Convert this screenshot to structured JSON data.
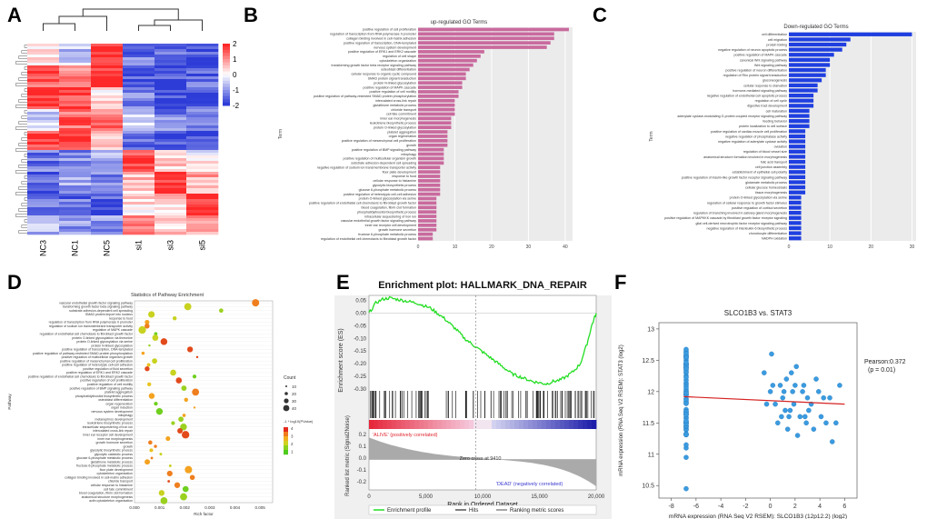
{
  "figure": {
    "panel_labels": [
      "A",
      "B",
      "C",
      "D",
      "E",
      "F"
    ]
  },
  "heatmap": {
    "columns": [
      "NC3",
      "NC1",
      "NC5",
      "si1",
      "si3",
      "si5"
    ],
    "legend_ticks": [
      "2",
      "1",
      "0",
      "-1",
      "-2"
    ],
    "colors": {
      "high": "#e41a1c",
      "mid": "#ffffff",
      "low": "#2b3bd6"
    }
  },
  "chart_data": [
    {
      "id": "B",
      "type": "bar",
      "title": "up-regulated GO Terms",
      "ylabel": "Term",
      "xlabel": "",
      "color": "#c96a9e",
      "xlim": [
        0,
        42
      ],
      "xticks": [
        0,
        10,
        20,
        30,
        40
      ],
      "categories": [
        "positive regulation of cell proliferation",
        "regulation of transcription from RNA polymerase II promoter",
        "collagen binding involved in cell-matrix adhesion",
        "positive regulation of transcription, DNA-templated",
        "nervous system development",
        "positive regulation of ERK1 and ERK2 cascade",
        "regulation of cell shape",
        "cytoskeleton organization",
        "transforming growth factor beta receptor signaling pathway",
        "osteoblast differentiation",
        "cellular response to organic cyclic compound",
        "SMAD protein signal transduction",
        "protein N-linked glycosylation",
        "positive regulation of MAPK cascade",
        "positive regulation of cell motility",
        "positive regulation of pathway-restricted SMAD protein phosphorylation",
        "intercalated cross-link repair",
        "glutathione metabolic process",
        "chloride transport",
        "cell fate commitment",
        "inner ear morphogenesis",
        "leukotriene biosynthetic process",
        "protein O-linked glycosylation",
        "platelet aggregation",
        "organ regeneration",
        "positive regulation of mesenchymal cell proliferation",
        "growth",
        "positive regulation of BMP signaling pathway",
        "mitophagy",
        "positive regulation of multicellular organism growth",
        "substrate adhesion-dependent cell spreading",
        "negative regulation of sodium ion transmembrane transporter activity",
        "floor plate development",
        "response to food",
        "cellular response to histamine",
        "glycolytic biosynthetic process",
        "glucose 6-phosphate metabolic process",
        "positive regulation of heterotypic cell-cell adhesion",
        "protein O-linked glycosylation via serine",
        "positive regulation of endothelial cell chemotaxis to fibroblast growth factor",
        "blood coagulation, fibrin clot formation",
        "phosphatidylinositol biosynthetic process",
        "intracellular sequestering of iron ion",
        "vascular endothelial growth factor signaling pathway",
        "inner ear receptor cell development",
        "growth hormone secretion",
        "fructose 6-phosphate metabolic process",
        "regulation of endothelial cell chemotaxis to fibroblast growth factor"
      ],
      "values": [
        41,
        37,
        37,
        36,
        35,
        18,
        17,
        16,
        15,
        14,
        13,
        13,
        12,
        12,
        11,
        11,
        10,
        10,
        10,
        10,
        9,
        9,
        9,
        8,
        8,
        8,
        8,
        7,
        7,
        7,
        7,
        6,
        6,
        6,
        6,
        6,
        6,
        6,
        5,
        5,
        5,
        5,
        5,
        5,
        5,
        5,
        4,
        4
      ]
    },
    {
      "id": "C",
      "type": "bar",
      "title": "Down-regulated GO Terms",
      "ylabel": "Term",
      "xlabel": "",
      "color": "#1f3fe0",
      "xlim": [
        0,
        31
      ],
      "xticks": [
        0,
        10,
        20,
        30
      ],
      "categories": [
        "cell differentiation",
        "cell migration",
        "protein folding",
        "negative regulation of neuron apoptotic process",
        "positive regulation of MAPK cascade",
        "canonical Wnt signaling pathway",
        "Wnt signaling pathway",
        "positive regulation of neuron differentiation",
        "regulation of Rho protein signal transduction",
        "gluconeogenesis",
        "cellular response to starvation",
        "hormone-mediated signaling pathway",
        "negative regulation of endothelial cell apoptotic process",
        "regulation of cell cycle",
        "digestive tract development",
        "cell maturation",
        "adenylate cyclase-modulating G-protein coupled receptor signaling pathway",
        "feeding behavior",
        "protein localization to cell surface",
        "positive regulation of cardiac muscle cell proliferation",
        "negative regulation of phosphatase activity",
        "negative regulation of adenylate cyclase activity",
        "ovulation",
        "regulation of blood vessel size",
        "anatomical structure formation involved in morphogenesis",
        "folic acid transport",
        "cell junction assembly",
        "establishment of epithelial cell polarity",
        "positive regulation of insulin-like growth factor receptor signaling pathway",
        "glutamate metabolic process",
        "cellular glucose homeostasis",
        "tissue morphogenesis",
        "protein O-linked glycosylation via serine",
        "regulation of cellular response to growth factor stimulus",
        "positive regulation of cortisol secretion",
        "regulation of branching involved in salivary gland morphogenesis",
        "positive regulation of MAPKKK cascade by fibroblast growth factor receptor signaling",
        "glial cell-derived neurotrophic factor receptor signaling pathway",
        "negative regulation of interleukin-6 biosynthetic process",
        "chondrocyte differentiation",
        "NADPH oxidation"
      ],
      "values": [
        30,
        15,
        14,
        13,
        11,
        10,
        10,
        9,
        9,
        8,
        7,
        7,
        6,
        6,
        6,
        5,
        5,
        5,
        5,
        4,
        4,
        4,
        4,
        4,
        4,
        4,
        4,
        4,
        4,
        4,
        4,
        4,
        3,
        3,
        3,
        3,
        3,
        3,
        3,
        3,
        3
      ]
    },
    {
      "id": "D",
      "type": "scatter",
      "title": "Statistics of Pathway Enrichment",
      "ylabel": "Pathway",
      "xlabel": "Rich factor",
      "xlim": [
        0,
        0.0055
      ],
      "xticks": [
        "0.000",
        "0.001",
        "0.002",
        "0.003",
        "0.004",
        "0.005"
      ],
      "legend_count_title": "Count",
      "legend_count": [
        "10",
        "20",
        "30",
        "40"
      ],
      "legend_color_title": "-1 * log10(PValue)",
      "legend_color_ticks": [
        "4",
        "3",
        "2",
        "1"
      ],
      "categories": [
        "vascular endothelial growth factor signaling pathway",
        "transforming growth factor beta signaling pathway",
        "substrate adhesion-dependent cell spreading",
        "SMAD protein import into nucleus",
        "response to food",
        "regulation of transcription from RNA polymerase II promoter",
        "regulation of sodium ion transmembrane transporter activity",
        "regulation of MAPK cascade",
        "regulation of endothelial cell chemotaxis to fibroblast growth factor",
        "protein O-linked glycosylation via threonine",
        "protein O-linked glycosylation via serine",
        "protein N-linked glycosylation",
        "positive regulation of transcription, DNA-templated",
        "positive regulation of pathway-restricted SMAD protein phosphorylation",
        "positive regulation of multicellular organism growth",
        "positive regulation of mesenchymal cell proliferation",
        "positive regulation of heterotypic cell-cell adhesion",
        "positive regulation of fluid secretion",
        "positive regulation of ERK1 and ERK2 cascade",
        "positive regulation of endothelial cell chemotaxis to fibroblast growth factor",
        "positive regulation of cell proliferation",
        "positive regulation of cell motility",
        "positive regulation of BMP signaling pathway",
        "platelet aggregation",
        "phosphatidylinositol biosynthetic process",
        "osteoblast differentiation",
        "organ regeneration",
        "organ induction",
        "nervous system development",
        "mitophagy",
        "metanephros development",
        "leukotriene biosynthetic process",
        "intracellular sequestering of iron ion",
        "intercalated cross-link repair",
        "inner ear receptor cell development",
        "inner ear morphogenesis",
        "growth hormone secretion",
        "growth",
        "glycolytic biosynthetic process",
        "glycolytic catabolic process",
        "glucose 6-phosphate metabolic process",
        "glutathione metabolic process",
        "fructose 6-phosphate metabolic process",
        "floor plate development",
        "cytoskeleton organization",
        "collagen binding involved in cell-matrix adhesion",
        "chloride transport",
        "cellular response to histamine",
        "cell fate commitment",
        "blood coagulation, fibrin clot formation",
        "anatomical structure morphogenesis",
        "actin cytoskeleton organization"
      ]
    },
    {
      "id": "E",
      "type": "line",
      "title": "Enrichment plot: HALLMARK_DNA_REPAIR",
      "ylabel": "Enrichment score (ES)",
      "ylabel2": "Ranked list metric (Signal2Noise)",
      "xlabel": "Rank in Ordered Dataset",
      "ylim": [
        -0.3,
        0.07
      ],
      "yticks": [
        "0.05",
        "0.00",
        "-0.05",
        "-0.10",
        "-0.15",
        "-0.20",
        "-0.25",
        "-0.30"
      ],
      "y2ticks": [
        "0.2",
        "0.1",
        "0.0",
        "-0.1",
        "-0.2"
      ],
      "xticks": [
        "0",
        "5,000",
        "10,000",
        "15,000",
        "20,000"
      ],
      "x": [
        0,
        600,
        1200,
        1800,
        2400,
        3000,
        3600,
        4200,
        4800,
        5400,
        6000,
        6600,
        7200,
        7800,
        8400,
        9000,
        9600,
        10200,
        10800,
        11400,
        12000,
        12600,
        13200,
        13800,
        14400,
        15000,
        15600,
        16200,
        16800,
        17400,
        18000,
        18600,
        19200,
        19600,
        20000
      ],
      "es": [
        0.0,
        0.04,
        0.055,
        0.06,
        0.055,
        0.05,
        0.045,
        0.04,
        0.03,
        0.02,
        0.0,
        -0.02,
        -0.045,
        -0.07,
        -0.1,
        -0.12,
        -0.14,
        -0.16,
        -0.18,
        -0.2,
        -0.22,
        -0.24,
        -0.25,
        -0.26,
        -0.27,
        -0.275,
        -0.28,
        -0.27,
        -0.265,
        -0.25,
        -0.23,
        -0.2,
        -0.12,
        -0.05,
        0.0
      ],
      "annotations": [
        "'ALIVE' (positively correlated)",
        "Zero cross at 9410",
        "'DEAD' (negatively correlated)"
      ],
      "legend": [
        "Enrichment profile",
        "Hits",
        "Ranking metric scores"
      ]
    },
    {
      "id": "F",
      "type": "scatter",
      "title": "SLCO1B3 vs. STAT3",
      "xlabel": "mRNA expression (RNA Seq V2 RSEM): SLCO1B3 (12p12.2) (log2)",
      "ylabel": "mRNA expression (RNA Seq V2 RSEM): STAT3 (log2)",
      "xlim": [
        -9,
        7
      ],
      "ylim": [
        10.3,
        13.1
      ],
      "xticks": [
        "-8",
        "-6",
        "-4",
        "-2",
        "0",
        "2",
        "4",
        "6"
      ],
      "yticks": [
        "13",
        "12.5",
        "12",
        "11.5",
        "11",
        "10.5"
      ],
      "annotation": "Pearson:0.372",
      "annotation2": "(p = 0.01)",
      "points_x": [
        -0.5,
        0.1,
        0.4,
        0.8,
        1.0,
        1.3,
        1.6,
        1.8,
        2.1,
        2.4,
        2.7,
        3.0,
        3.3,
        3.7,
        4.1,
        4.5,
        5.0,
        5.6,
        0.6,
        1.1,
        1.4,
        1.9,
        2.2,
        2.6,
        3.1,
        3.5,
        0.2,
        0.9,
        1.7,
        2.9,
        3.9,
        4.3,
        -0.3,
        1.2,
        2.0,
        2.8,
        4.8,
        5.3,
        0.0,
        1.5
      ],
      "points_y": [
        12.3,
        12.6,
        11.8,
        12.1,
        11.9,
        12.2,
        11.7,
        12.0,
        12.4,
        11.6,
        12.1,
        11.9,
        11.8,
        12.2,
        11.6,
        11.5,
        11.2,
        12.1,
        11.5,
        12.0,
        11.4,
        11.8,
        11.3,
        12.0,
        11.7,
        11.4,
        12.1,
        11.6,
        12.3,
        11.5,
        12.0,
        11.9,
        11.8,
        11.7,
        12.1,
        11.6,
        11.9,
        11.5,
        12.0,
        11.6
      ],
      "line": {
        "x": [
          -7,
          6
        ],
        "y": [
          11.92,
          11.8
        ]
      }
    }
  ]
}
